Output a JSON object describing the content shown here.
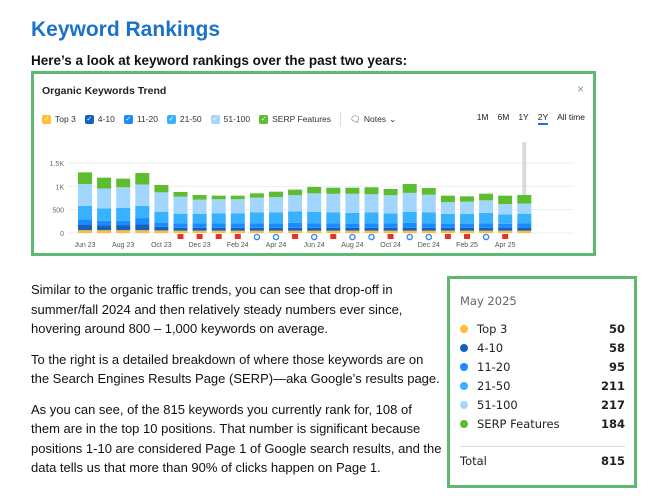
{
  "heading": "Keyword Rankings",
  "subheading": "Here’s a look at keyword rankings over the past two years:",
  "card": {
    "title": "Organic Keywords Trend",
    "close": "×",
    "legend": [
      {
        "label": "Top 3",
        "color": "#ffbf2f"
      },
      {
        "label": "4-10",
        "color": "#1460c4"
      },
      {
        "label": "11-20",
        "color": "#1a8cff"
      },
      {
        "label": "21-50",
        "color": "#38b2ff"
      },
      {
        "label": "51-100",
        "color": "#a3d6ff"
      },
      {
        "label": "SERP Features",
        "color": "#5cbd2e"
      }
    ],
    "notes": "Notes",
    "ranges": [
      "1M",
      "6M",
      "1Y",
      "2Y",
      "All time"
    ],
    "active_range": "2Y"
  },
  "chart_data": {
    "type": "bar",
    "stacked": true,
    "title": "Organic Keywords Trend",
    "ylim": [
      0,
      1500
    ],
    "yticks": [
      "0",
      "500",
      "1K",
      "1.5K"
    ],
    "grid": true,
    "legend": "top-left",
    "xtick_labels": [
      "Jun 23",
      "Aug 23",
      "Oct 23",
      "Dec 23",
      "Feb 24",
      "Apr 24",
      "Jun 24",
      "Aug 24",
      "Oct 24",
      "Dec 24",
      "Feb 25",
      "Apr 25"
    ],
    "categories": [
      "Jun 23",
      "Jul 23",
      "Aug 23",
      "Sep 23",
      "Oct 23",
      "Nov 23",
      "Dec 23",
      "Jan 24",
      "Feb 24",
      "Mar 24",
      "Apr 24",
      "May 24",
      "Jun 24",
      "Jul 24",
      "Aug 24",
      "Sep 24",
      "Oct 24",
      "Nov 24",
      "Dec 24",
      "Jan 25",
      "Feb 25",
      "Mar 25",
      "Apr 25",
      "May 25"
    ],
    "series": [
      {
        "name": "Top 3",
        "values": [
          60,
          60,
          60,
          60,
          55,
          50,
          50,
          50,
          50,
          50,
          50,
          50,
          50,
          50,
          50,
          50,
          50,
          50,
          50,
          50,
          50,
          50,
          50,
          50
        ]
      },
      {
        "name": "4-10",
        "values": [
          126,
          100,
          110,
          130,
          80,
          60,
          60,
          60,
          60,
          60,
          60,
          60,
          60,
          60,
          60,
          60,
          60,
          60,
          60,
          60,
          60,
          60,
          58,
          58
        ]
      },
      {
        "name": "11-20",
        "values": [
          107,
          100,
          90,
          130,
          80,
          100,
          100,
          100,
          100,
          100,
          100,
          110,
          100,
          100,
          90,
          100,
          100,
          110,
          100,
          90,
          90,
          100,
          90,
          95
        ]
      },
      {
        "name": "21-50",
        "values": [
          286,
          269,
          280,
          260,
          242,
          204,
          204,
          214,
          214,
          230,
          230,
          240,
          240,
          230,
          230,
          230,
          210,
          230,
          230,
          210,
          210,
          220,
          200,
          211
        ]
      },
      {
        "name": "51-100",
        "values": [
          471,
          425,
          440,
          460,
          414,
          365,
          300,
          300,
          300,
          320,
          330,
          350,
          400,
          400,
          410,
          390,
          390,
          410,
          380,
          250,
          260,
          270,
          220,
          217
        ]
      },
      {
        "name": "SERP Features",
        "values": [
          250,
          232,
          184,
          246,
          158,
          100,
          100,
          76,
          76,
          90,
          116,
          119,
          136,
          131,
          131,
          149,
          133,
          190,
          144,
          140,
          116,
          143,
          182,
          184
        ]
      }
    ],
    "markers": [
      "",
      "",
      "",
      "",
      "",
      "flag",
      "flag",
      "flag",
      "flag",
      "google",
      "google",
      "flag",
      "google",
      "flag",
      "google",
      "google",
      "flag",
      "google",
      "google",
      "flag",
      "flag",
      "google",
      "flag",
      ""
    ],
    "highlighted": "May 25"
  },
  "paragraphs": [
    "Similar to the organic traffic trends, you can see that drop-off in summer/fall 2024 and then relatively steady numbers ever since, hovering around 800 – 1,000 keywords on average.",
    "To the right is a detailed breakdown of where those keywords are on the Search Engines Results Page (SERP)—aka Google’s results page.",
    "As you can see, of the 815 keywords you currently rank for, 108 of them are in the top 10 positions. That number is significant because positions 1-10 are considered Page 1 of Google search results, and the data tells us that more than 90% of clicks happen on Page 1."
  ],
  "tooltip": {
    "date": "May 2025",
    "rows": [
      {
        "label": "Top 3",
        "value": "50",
        "color": "#ffbf2f"
      },
      {
        "label": "4-10",
        "value": "58",
        "color": "#1460c4"
      },
      {
        "label": "11-20",
        "value": "95",
        "color": "#1a8cff"
      },
      {
        "label": "21-50",
        "value": "211",
        "color": "#38b2ff"
      },
      {
        "label": "51-100",
        "value": "217",
        "color": "#a3d6ff"
      },
      {
        "label": "SERP Features",
        "value": "184",
        "color": "#5cbd2e"
      }
    ],
    "total_label": "Total",
    "total_value": "815"
  }
}
